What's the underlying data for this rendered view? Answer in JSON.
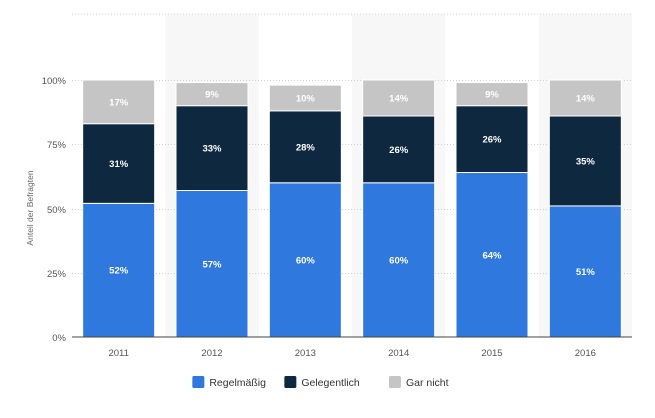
{
  "chart_data": {
    "type": "bar",
    "stacked": true,
    "percent_stacked": true,
    "categories": [
      "2011",
      "2012",
      "2013",
      "2014",
      "2015",
      "2016"
    ],
    "series": [
      {
        "name": "Regelmäßig",
        "values": [
          52,
          57,
          60,
          60,
          64,
          51
        ],
        "color": "#2f78dd",
        "label_color": "#ffffff"
      },
      {
        "name": "Gelegentlich",
        "values": [
          31,
          33,
          28,
          26,
          26,
          35
        ],
        "color": "#0e2840",
        "label_color": "#ffffff"
      },
      {
        "name": "Gar nicht",
        "values": [
          17,
          9,
          10,
          14,
          9,
          14
        ],
        "color": "#c5c5c5",
        "label_color": "#ffffff"
      }
    ],
    "data_label_suffix": "%",
    "ylabel": "Anteil der Befragten",
    "ylim": [
      0,
      100
    ],
    "yticks": [
      0,
      25,
      50,
      75,
      100
    ],
    "ytick_labels": [
      "0%",
      "25%",
      "50%",
      "75%",
      "100%"
    ],
    "grid": true,
    "legend_position": "bottom-center",
    "alternating_column_shading": true
  }
}
